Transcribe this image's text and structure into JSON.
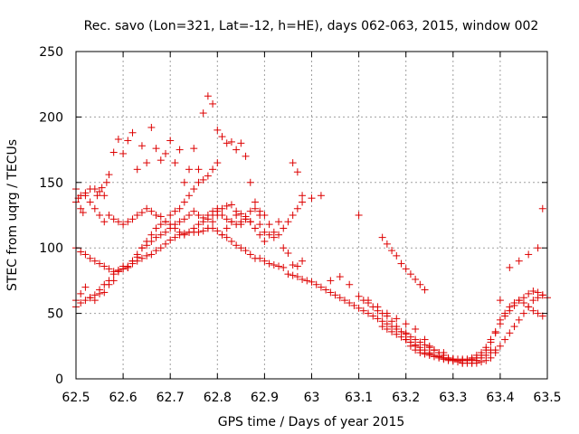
{
  "chart_data": {
    "type": "scatter",
    "title": "Rec. savo (Lon=321, Lat=-12, h=HE), days 062-063, 2015, window 002",
    "xlabel": "GPS time / Days of year 2015",
    "ylabel": "STEC from uqrg / TECUs",
    "xlim": [
      62.5,
      63.5
    ],
    "ylim": [
      0,
      250
    ],
    "x_ticks": [
      62.5,
      62.6,
      62.7,
      62.8,
      62.9,
      63.0,
      63.1,
      63.2,
      63.3,
      63.4,
      63.5
    ],
    "x_tick_labels": [
      "62.5",
      "62.6",
      "62.7",
      "62.8",
      "62.9",
      "63",
      "63.1",
      "63.2",
      "63.3",
      "63.4",
      "63.5"
    ],
    "y_ticks": [
      0,
      50,
      100,
      150,
      200,
      250
    ],
    "y_tick_labels": [
      "0",
      "50",
      "100",
      "150",
      "200",
      "250"
    ],
    "grid": true,
    "marker": "plus",
    "color": "#dd0000",
    "series": [
      {
        "name": "STEC",
        "x": [
          62.5,
          62.505,
          62.51,
          62.515,
          62.52,
          62.53,
          62.54,
          62.545,
          62.55,
          62.555,
          62.56,
          62.565,
          62.57,
          62.58,
          62.59,
          62.6,
          62.61,
          62.62,
          62.63,
          62.64,
          62.65,
          62.66,
          62.67,
          62.68,
          62.69,
          62.7,
          62.71,
          62.72,
          62.73,
          62.74,
          62.75,
          62.76,
          62.77,
          62.78,
          62.79,
          62.8,
          62.81,
          62.82,
          62.83,
          62.84,
          62.85,
          62.86,
          62.87,
          62.88,
          62.89,
          62.9,
          62.91,
          62.92,
          62.93,
          62.94,
          62.95,
          62.96,
          62.97,
          62.98,
          62.5,
          62.51,
          62.52,
          62.53,
          62.54,
          62.55,
          62.56,
          62.57,
          62.58,
          62.59,
          62.6,
          62.61,
          62.62,
          62.63,
          62.64,
          62.65,
          62.66,
          62.67,
          62.68,
          62.69,
          62.7,
          62.71,
          62.72,
          62.73,
          62.74,
          62.75,
          62.76,
          62.77,
          62.78,
          62.79,
          62.8,
          62.81,
          62.82,
          62.83,
          62.84,
          62.85,
          62.86,
          62.87,
          62.88,
          62.89,
          62.9,
          62.5,
          62.51,
          62.52,
          62.53,
          62.54,
          62.55,
          62.56,
          62.57,
          62.58,
          62.59,
          62.6,
          62.61,
          62.62,
          62.63,
          62.64,
          62.65,
          62.66,
          62.67,
          62.68,
          62.69,
          62.7,
          62.71,
          62.72,
          62.73,
          62.74,
          62.75,
          62.76,
          62.77,
          62.78,
          62.79,
          62.8,
          62.81,
          62.82,
          62.83,
          62.84,
          62.85,
          62.86,
          62.87,
          62.88,
          62.89,
          62.9,
          62.91,
          62.92,
          62.93,
          62.94,
          62.95,
          62.96,
          62.97,
          62.98,
          62.5,
          62.51,
          62.52,
          62.53,
          62.54,
          62.55,
          62.56,
          62.57,
          62.58,
          62.59,
          62.6,
          62.61,
          62.62,
          62.63,
          62.64,
          62.65,
          62.66,
          62.67,
          62.68,
          62.69,
          62.7,
          62.71,
          62.72,
          62.73,
          62.74,
          62.75,
          62.76,
          62.77,
          62.78,
          62.79,
          62.8,
          62.81,
          62.82,
          62.83,
          62.84,
          62.85,
          62.86,
          62.87,
          62.88,
          62.89,
          62.9,
          62.91,
          62.92,
          62.93,
          62.94,
          62.95,
          62.96,
          62.97,
          62.98,
          62.99,
          63.0,
          63.01,
          63.02,
          63.03,
          63.04,
          63.05,
          63.06,
          63.07,
          63.08,
          63.09,
          63.1,
          63.11,
          63.12,
          63.13,
          63.14,
          63.15,
          63.16,
          63.17,
          63.18,
          63.19,
          63.2,
          62.5,
          62.51,
          62.52,
          62.53,
          62.54,
          62.55,
          62.56,
          62.57,
          62.58,
          62.59,
          62.6,
          62.61,
          62.62,
          62.63,
          62.64,
          62.65,
          62.66,
          62.67,
          62.68,
          62.69,
          62.7,
          62.71,
          62.72,
          62.73,
          62.74,
          62.75,
          62.76,
          62.77,
          62.78,
          62.79,
          62.8,
          63.1,
          63.11,
          63.12,
          63.13,
          63.14,
          63.15,
          63.16,
          63.17,
          63.18,
          63.19,
          63.2,
          63.21,
          63.22,
          63.23,
          63.24,
          63.25,
          63.26,
          63.27,
          63.28,
          63.29,
          63.3,
          63.31,
          63.32,
          63.33,
          63.34,
          63.35,
          63.36,
          63.37,
          63.38,
          63.39,
          63.4,
          63.41,
          63.42,
          63.43,
          63.44,
          63.45,
          63.46,
          63.47,
          63.48,
          63.49,
          63.5,
          63.15,
          63.16,
          63.17,
          63.18,
          63.19,
          63.2,
          63.21,
          63.22,
          63.23,
          63.24,
          63.25,
          63.26,
          63.27,
          63.28,
          63.29,
          63.3,
          63.31,
          63.32,
          63.33,
          63.34,
          63.35,
          63.36,
          63.37,
          63.38,
          63.39,
          63.4,
          63.41,
          63.42,
          63.43,
          63.44,
          63.45,
          63.46,
          63.47,
          63.48,
          63.49,
          63.2,
          63.21,
          63.22,
          63.23,
          63.24,
          63.25,
          63.26,
          63.27,
          63.28,
          63.29,
          63.3,
          63.31,
          63.32,
          63.33,
          63.34,
          63.35,
          63.36,
          63.37,
          63.38,
          63.39,
          63.4,
          63.41,
          63.42,
          63.43,
          63.44,
          63.45,
          63.46,
          63.47,
          63.48,
          63.49,
          62.96,
          62.97,
          62.98,
          63.0,
          63.02,
          63.04,
          63.06,
          63.08,
          63.1,
          63.12,
          63.14,
          63.16,
          63.18,
          63.2,
          63.22,
          63.24,
          63.26,
          63.28,
          63.3,
          63.32,
          63.34,
          63.36,
          63.38,
          63.4,
          63.42,
          63.44,
          63.46,
          63.48,
          63.49,
          62.78,
          62.79,
          62.8,
          62.81,
          62.82,
          62.83,
          62.84,
          62.85,
          62.86,
          62.87,
          62.88,
          62.89,
          63.25,
          63.26,
          63.27,
          63.28,
          63.3,
          63.32,
          63.34,
          63.35,
          63.36,
          63.37,
          63.38,
          63.39,
          63.2,
          63.21,
          63.22,
          63.23,
          63.24,
          63.25,
          63.26,
          63.27,
          63.28,
          63.29,
          63.31,
          63.33,
          63.35,
          63.15,
          63.16,
          63.17,
          63.18,
          63.19,
          63.2,
          63.21,
          63.22,
          63.23,
          63.24
        ],
        "y": [
          145,
          138,
          130,
          127,
          140,
          145,
          145,
          140,
          143,
          146,
          140,
          150,
          156,
          173,
          183,
          172,
          182,
          188,
          160,
          178,
          165,
          192,
          176,
          167,
          172,
          182,
          165,
          175,
          150,
          160,
          176,
          160,
          203,
          216,
          210,
          190,
          185,
          180,
          181,
          175,
          180,
          170,
          150,
          135,
          125,
          112,
          110,
          108,
          120,
          100,
          96,
          87,
          86,
          90,
          135,
          140,
          142,
          135,
          130,
          125,
          120,
          125,
          122,
          120,
          118,
          120,
          122,
          125,
          127,
          130,
          128,
          125,
          124,
          120,
          118,
          115,
          112,
          110,
          112,
          115,
          118,
          120,
          125,
          128,
          130,
          125,
          122,
          120,
          118,
          120,
          122,
          120,
          115,
          110,
          105,
          60,
          65,
          70,
          62,
          60,
          65,
          66,
          72,
          75,
          82,
          86,
          85,
          90,
          93,
          100,
          102,
          105,
          108,
          110,
          112,
          115,
          118,
          120,
          122,
          125,
          128,
          125,
          123,
          122,
          125,
          128,
          130,
          132,
          133,
          128,
          126,
          124,
          128,
          130,
          128,
          125,
          118,
          112,
          110,
          115,
          120,
          125,
          130,
          135,
          100,
          97,
          95,
          92,
          90,
          88,
          86,
          84,
          82,
          83,
          84,
          85,
          88,
          90,
          92,
          94,
          95,
          98,
          100,
          103,
          106,
          108,
          110,
          111,
          112,
          112,
          112,
          113,
          115,
          115,
          113,
          110,
          108,
          105,
          102,
          100,
          98,
          95,
          92,
          92,
          90,
          88,
          87,
          86,
          85,
          80,
          79,
          78,
          76,
          75,
          74,
          72,
          70,
          68,
          66,
          64,
          62,
          60,
          58,
          56,
          54,
          52,
          50,
          48,
          46,
          44,
          42,
          40,
          38,
          36,
          34,
          55,
          58,
          60,
          62,
          64,
          68,
          72,
          75,
          80,
          82,
          84,
          86,
          90,
          95,
          100,
          105,
          110,
          115,
          118,
          120,
          125,
          128,
          130,
          135,
          140,
          145,
          150,
          152,
          155,
          160,
          165,
          63,
          60,
          58,
          55,
          52,
          50,
          48,
          44,
          40,
          36,
          30,
          25,
          22,
          20,
          19,
          18,
          17,
          16,
          15,
          14,
          14,
          14,
          14,
          14,
          15,
          16,
          18,
          22,
          28,
          35,
          45,
          50,
          55,
          58,
          60,
          62,
          65,
          67,
          66,
          64,
          62,
          40,
          38,
          36,
          34,
          32,
          30,
          28,
          25,
          22,
          20,
          19,
          18,
          17,
          16,
          15,
          15,
          15,
          15,
          15,
          16,
          18,
          20,
          24,
          30,
          36,
          42,
          48,
          52,
          56,
          60,
          58,
          55,
          52,
          50,
          48,
          30,
          28,
          26,
          24,
          22,
          20,
          18,
          17,
          16,
          15,
          14,
          13,
          12,
          12,
          12,
          12,
          13,
          14,
          16,
          20,
          25,
          30,
          35,
          40,
          45,
          50,
          55,
          60,
          62,
          64,
          165,
          158,
          140,
          138,
          140,
          75,
          78,
          72,
          125,
          60,
          55,
          50,
          46,
          42,
          38,
          30,
          22,
          18,
          15,
          14,
          14,
          18,
          22,
          60,
          85,
          90,
          95,
          100,
          130,
          115,
          120,
          125,
          110,
          115,
          120,
          125,
          118,
          122,
          120,
          115,
          118,
          25,
          22,
          20,
          20,
          15,
          12,
          12,
          14,
          16,
          18,
          20,
          22,
          35,
          32,
          30,
          28,
          26,
          24,
          22,
          20,
          18,
          16,
          14,
          14,
          14,
          108,
          103,
          98,
          94,
          88,
          84,
          80,
          76,
          72,
          68
        ]
      }
    ]
  }
}
